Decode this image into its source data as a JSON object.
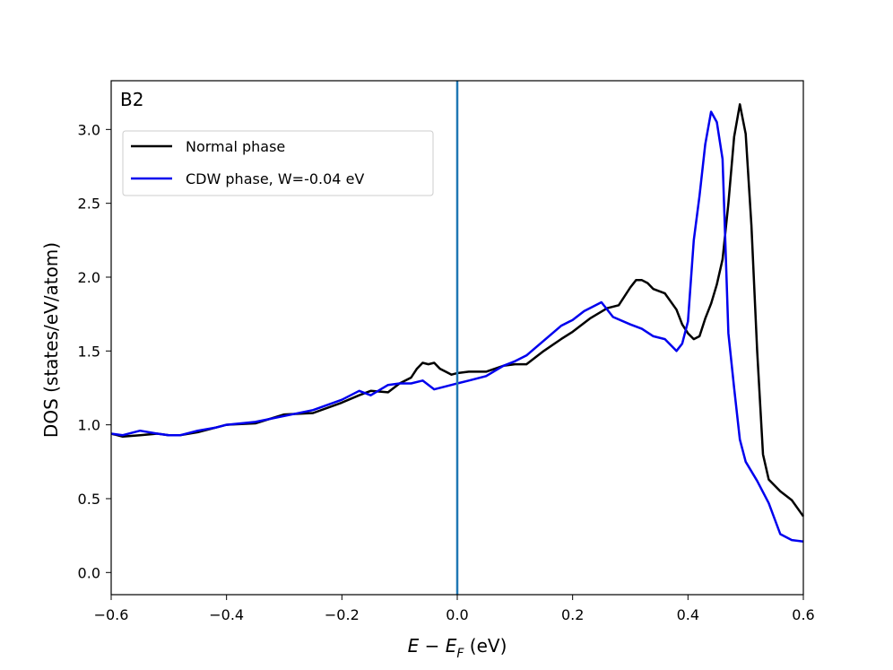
{
  "chart_data": {
    "type": "line",
    "panel_label": "B2",
    "xlabel_main": "E − E",
    "xlabel_sub": "F",
    "xlabel_unit": " (eV)",
    "ylabel": "DOS (states/eV/atom)",
    "xlim": [
      -0.6,
      0.6
    ],
    "ylim": [
      -0.15,
      3.33
    ],
    "xticks": [
      -0.6,
      -0.4,
      -0.2,
      0.0,
      0.2,
      0.4,
      0.6
    ],
    "xtick_labels": [
      "−0.6",
      "−0.4",
      "−0.2",
      "0.0",
      "0.2",
      "0.4",
      "0.6"
    ],
    "yticks": [
      0.0,
      0.5,
      1.0,
      1.5,
      2.0,
      2.5,
      3.0
    ],
    "ytick_labels": [
      "0.0",
      "0.5",
      "1.0",
      "1.5",
      "2.0",
      "2.5",
      "3.0"
    ],
    "vline": {
      "x": 0.0,
      "color": "#1f77b4"
    },
    "legend_position": "upper-left",
    "series": [
      {
        "name": "Normal phase",
        "color": "#000000",
        "x": [
          -0.6,
          -0.58,
          -0.55,
          -0.52,
          -0.5,
          -0.48,
          -0.45,
          -0.42,
          -0.4,
          -0.35,
          -0.3,
          -0.25,
          -0.2,
          -0.17,
          -0.15,
          -0.12,
          -0.1,
          -0.08,
          -0.07,
          -0.06,
          -0.05,
          -0.04,
          -0.03,
          -0.02,
          -0.01,
          0.0,
          0.02,
          0.05,
          0.08,
          0.1,
          0.12,
          0.15,
          0.18,
          0.2,
          0.23,
          0.26,
          0.28,
          0.3,
          0.31,
          0.32,
          0.33,
          0.34,
          0.36,
          0.38,
          0.39,
          0.4,
          0.41,
          0.42,
          0.43,
          0.44,
          0.45,
          0.46,
          0.47,
          0.48,
          0.49,
          0.5,
          0.51,
          0.52,
          0.53,
          0.54,
          0.56,
          0.58,
          0.6
        ],
        "values": [
          0.94,
          0.92,
          0.93,
          0.94,
          0.93,
          0.93,
          0.95,
          0.98,
          1.0,
          1.01,
          1.07,
          1.08,
          1.15,
          1.2,
          1.23,
          1.22,
          1.28,
          1.32,
          1.38,
          1.42,
          1.41,
          1.42,
          1.38,
          1.36,
          1.34,
          1.35,
          1.36,
          1.36,
          1.4,
          1.41,
          1.41,
          1.5,
          1.58,
          1.63,
          1.72,
          1.79,
          1.81,
          1.93,
          1.98,
          1.98,
          1.96,
          1.92,
          1.89,
          1.78,
          1.68,
          1.62,
          1.58,
          1.6,
          1.72,
          1.82,
          1.95,
          2.12,
          2.5,
          2.95,
          3.17,
          2.97,
          2.35,
          1.5,
          0.8,
          0.63,
          0.55,
          0.49,
          0.38
        ]
      },
      {
        "name": "CDW phase, W=-0.04 eV",
        "color": "#0000ee",
        "x": [
          -0.6,
          -0.58,
          -0.55,
          -0.52,
          -0.5,
          -0.48,
          -0.45,
          -0.42,
          -0.4,
          -0.35,
          -0.3,
          -0.25,
          -0.2,
          -0.17,
          -0.15,
          -0.12,
          -0.1,
          -0.08,
          -0.06,
          -0.04,
          -0.02,
          0.0,
          0.02,
          0.05,
          0.08,
          0.1,
          0.12,
          0.15,
          0.18,
          0.2,
          0.22,
          0.25,
          0.27,
          0.3,
          0.32,
          0.34,
          0.36,
          0.38,
          0.39,
          0.4,
          0.41,
          0.42,
          0.43,
          0.44,
          0.45,
          0.46,
          0.47,
          0.48,
          0.49,
          0.5,
          0.52,
          0.54,
          0.56,
          0.58,
          0.6
        ],
        "values": [
          0.94,
          0.93,
          0.96,
          0.94,
          0.93,
          0.93,
          0.96,
          0.98,
          1.0,
          1.02,
          1.06,
          1.1,
          1.17,
          1.23,
          1.2,
          1.27,
          1.28,
          1.28,
          1.3,
          1.24,
          1.26,
          1.28,
          1.3,
          1.33,
          1.4,
          1.43,
          1.47,
          1.57,
          1.67,
          1.71,
          1.77,
          1.83,
          1.73,
          1.68,
          1.65,
          1.6,
          1.58,
          1.5,
          1.55,
          1.7,
          2.25,
          2.55,
          2.9,
          3.12,
          3.05,
          2.8,
          1.62,
          1.25,
          0.9,
          0.75,
          0.62,
          0.47,
          0.26,
          0.22,
          0.21
        ]
      }
    ]
  }
}
